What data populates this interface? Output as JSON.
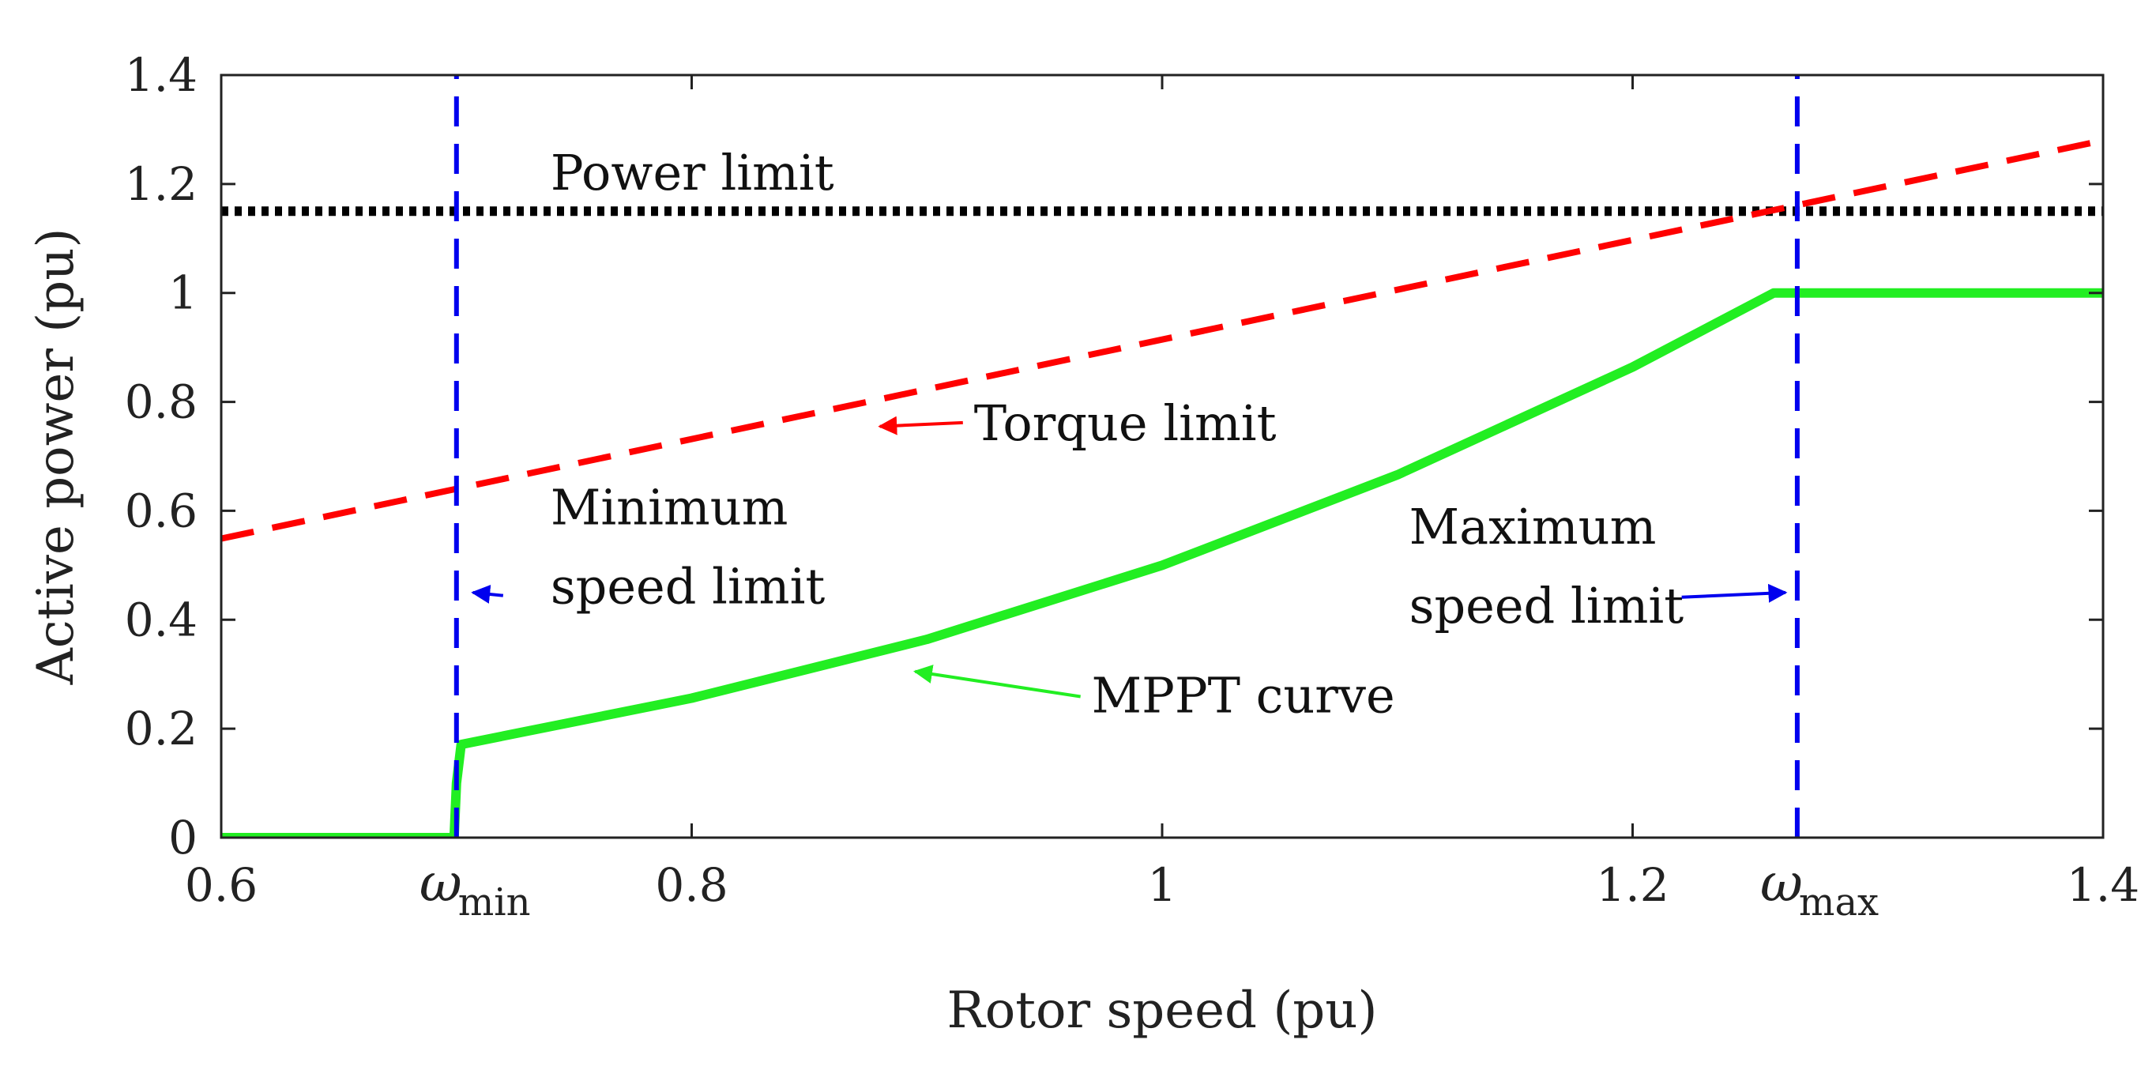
{
  "chart_data": {
    "type": "line",
    "xlabel": "Rotor speed (pu)",
    "ylabel": "Active power (pu)",
    "xlim": [
      0.6,
      1.4
    ],
    "ylim": [
      0,
      1.4
    ],
    "x_ticks": [
      {
        "value": 0.6,
        "label": "0.6"
      },
      {
        "value": 0.8,
        "label": "0.8"
      },
      {
        "value": 1.0,
        "label": "1"
      },
      {
        "value": 1.2,
        "label": "1.2"
      },
      {
        "value": 1.4,
        "label": "1.4"
      }
    ],
    "x_tick_minor_labels": [
      {
        "value": 0.7,
        "symbol": "ω",
        "subscript": "min"
      },
      {
        "value": 1.27,
        "symbol": "ω",
        "subscript": "max"
      }
    ],
    "y_ticks": [
      {
        "value": 0,
        "label": "0"
      },
      {
        "value": 0.2,
        "label": "0.2"
      },
      {
        "value": 0.4,
        "label": "0.4"
      },
      {
        "value": 0.6,
        "label": "0.6"
      },
      {
        "value": 0.8,
        "label": "0.8"
      },
      {
        "value": 1.0,
        "label": "1"
      },
      {
        "value": 1.2,
        "label": "1.2"
      },
      {
        "value": 1.4,
        "label": "1.4"
      }
    ],
    "grid": false,
    "series": [
      {
        "name": "Power limit",
        "color": "#000000",
        "style": "dotted",
        "x": [
          0.6,
          1.4
        ],
        "y": [
          1.15,
          1.15
        ]
      },
      {
        "name": "Torque limit",
        "color": "#ff0000",
        "style": "dashed",
        "x": [
          0.6,
          1.4
        ],
        "y": [
          0.549,
          1.28
        ]
      },
      {
        "name": "MPPT curve",
        "color": "#22ee22",
        "style": "solid",
        "x": [
          0.6,
          0.699,
          0.7,
          0.702,
          0.8,
          0.9,
          1.0,
          1.1,
          1.2,
          1.26,
          1.4
        ],
        "y": [
          0,
          0,
          0.1,
          0.171,
          0.256,
          0.364,
          0.5,
          0.666,
          0.864,
          1.0,
          1.0
        ]
      },
      {
        "name": "Minimum speed limit",
        "color": "#0000ee",
        "style": "dashed",
        "x": [
          0.7,
          0.7
        ],
        "y": [
          0,
          1.4
        ]
      },
      {
        "name": "Maximum speed limit",
        "color": "#0000ee",
        "style": "dashed",
        "x": [
          1.27,
          1.27
        ],
        "y": [
          0,
          1.4
        ]
      }
    ],
    "annotations": [
      {
        "id": "power-limit",
        "lines": [
          "Power limit"
        ],
        "color": "#000000",
        "x": 0.74,
        "y": 1.19,
        "anchor": "start"
      },
      {
        "id": "torque-limit",
        "lines": [
          "Torque limit"
        ],
        "color": "#ff0000",
        "x": 0.92,
        "y": 0.73,
        "anchor": "start",
        "arrow_to": [
          0.88,
          0.755
        ]
      },
      {
        "id": "minimum-speed-limit",
        "lines": [
          "Minimum",
          "speed limit"
        ],
        "color": "#0000ee",
        "x": 0.74,
        "y": 0.575,
        "anchor": "start",
        "arrow_to": [
          0.707,
          0.45
        ]
      },
      {
        "id": "maximum-speed-limit",
        "lines": [
          "Maximum",
          "speed limit"
        ],
        "color": "#0000ee",
        "x": 1.105,
        "y": 0.54,
        "anchor": "start",
        "arrow_to": [
          1.265,
          0.45
        ]
      },
      {
        "id": "mppt-curve",
        "lines": [
          "MPPT curve"
        ],
        "color": "#22ee22",
        "x": 0.97,
        "y": 0.23,
        "anchor": "start",
        "arrow_to": [
          0.895,
          0.305
        ]
      }
    ],
    "colors": {
      "axes": "#222222",
      "power_limit": "#000000",
      "torque_limit": "#ff0000",
      "mppt": "#22ee22",
      "speed_limits": "#0000ee"
    }
  }
}
